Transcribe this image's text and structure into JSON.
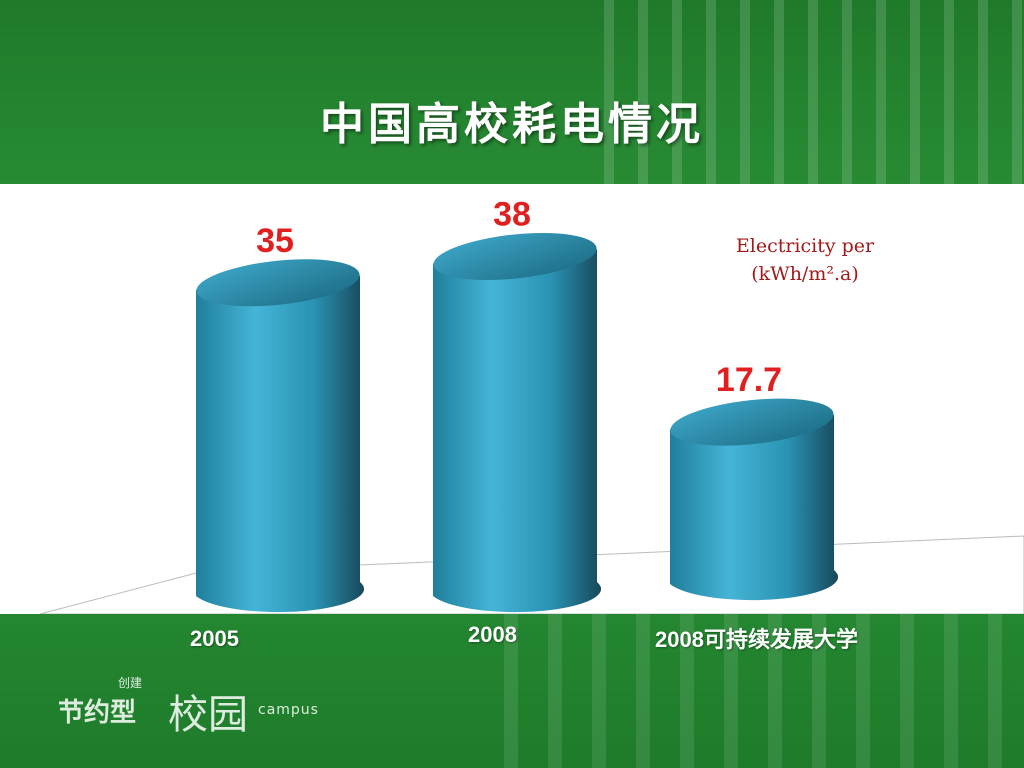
{
  "slide": {
    "title": "中国高校耗电情况"
  },
  "chart_data": {
    "type": "bar",
    "title": "中国高校耗电情况",
    "ylabel_lines": [
      "Electricity per",
      "(kWh/m².a)"
    ],
    "categories": [
      "2005",
      "2008",
      "2008可持续发展大学"
    ],
    "values": [
      35,
      38,
      17.7
    ],
    "data_labels": [
      "35",
      "38",
      "17.7"
    ],
    "ylim": [
      0,
      40
    ],
    "colors": {
      "bar": "#2d9ec0",
      "bar_dark": "#1c5f73",
      "label": "#e02020"
    }
  },
  "logo": {
    "small": "创建",
    "mid": "节约型",
    "big": "校园",
    "en": "campus"
  }
}
